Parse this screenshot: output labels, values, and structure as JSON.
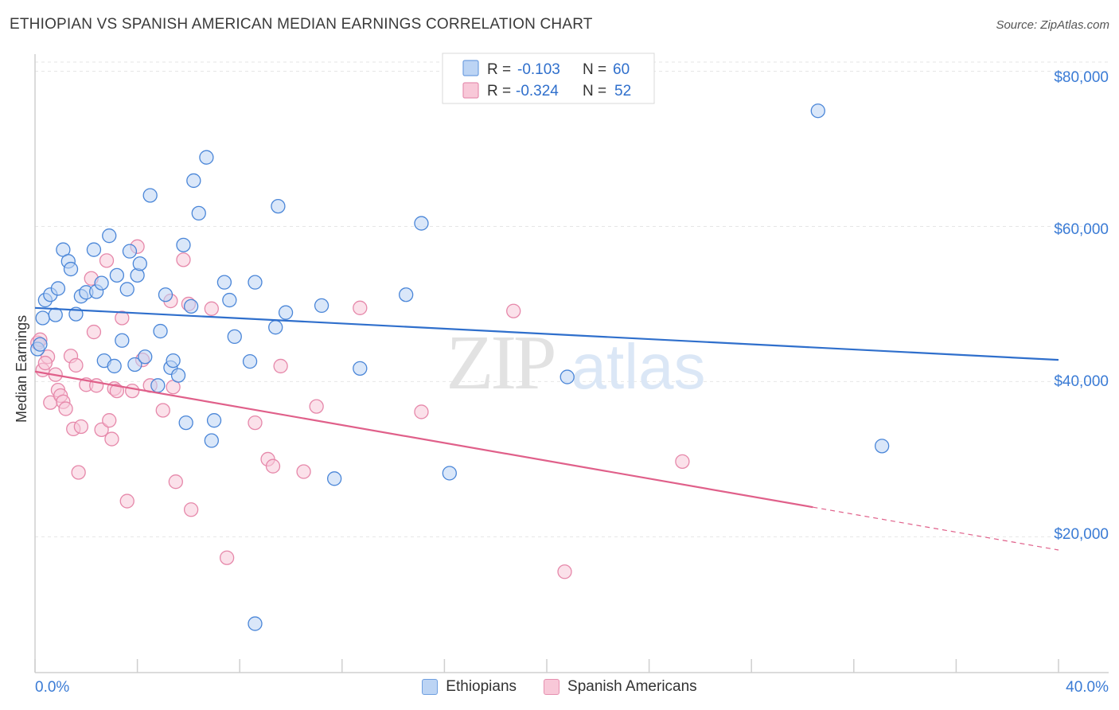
{
  "header": {
    "title": "ETHIOPIAN VS SPANISH AMERICAN MEDIAN EARNINGS CORRELATION CHART",
    "source": "Source: ZipAtlas.com"
  },
  "colors": {
    "blue": "#4a86d8",
    "blue_fill": "#bcd4f4",
    "blue_line": "#2f6fcc",
    "pink": "#e688aa",
    "pink_fill": "#f8c8d8",
    "pink_line": "#e0608a",
    "axis_label": "#3a7bd5"
  },
  "legend": {
    "r_label": "R =",
    "n_label": "N =",
    "items": [
      {
        "name": "Ethiopians",
        "r": "-0.103",
        "n": "60"
      },
      {
        "name": "Spanish Americans",
        "r": "-0.324",
        "n": "52"
      }
    ]
  },
  "watermark": {
    "zip": "ZIP",
    "atlas": "atlas"
  },
  "chart_data": {
    "type": "scatter",
    "title": "ETHIOPIAN VS SPANISH AMERICAN MEDIAN EARNINGS CORRELATION CHART",
    "xlabel": "",
    "ylabel": "Median Earnings",
    "xlim": [
      0,
      40
    ],
    "ylim": [
      2500,
      82000
    ],
    "x_tick_labels": [
      "0.0%",
      "40.0%"
    ],
    "y_ticks": [
      20000,
      40000,
      60000,
      80000
    ],
    "y_tick_labels": [
      "$20,000",
      "$40,000",
      "$60,000",
      "$80,000"
    ],
    "grid": true,
    "series": [
      {
        "name": "Ethiopians",
        "trend": {
          "x0": 0,
          "y0": 49500,
          "x1": 40,
          "y1": 42800,
          "solid_until": 40
        },
        "points": [
          [
            0.3,
            48200
          ],
          [
            0.4,
            50500
          ],
          [
            0.6,
            51200
          ],
          [
            0.8,
            48600
          ],
          [
            0.9,
            52000
          ],
          [
            1.1,
            57000
          ],
          [
            1.3,
            55500
          ],
          [
            1.4,
            54500
          ],
          [
            1.6,
            48700
          ],
          [
            1.8,
            51000
          ],
          [
            2.0,
            51500
          ],
          [
            2.3,
            57000
          ],
          [
            2.4,
            51600
          ],
          [
            2.6,
            52700
          ],
          [
            2.7,
            42700
          ],
          [
            2.9,
            58800
          ],
          [
            3.1,
            42000
          ],
          [
            3.2,
            53700
          ],
          [
            3.4,
            45300
          ],
          [
            3.6,
            51900
          ],
          [
            3.7,
            56800
          ],
          [
            3.9,
            42200
          ],
          [
            4.0,
            53700
          ],
          [
            4.1,
            55200
          ],
          [
            4.3,
            43200
          ],
          [
            4.5,
            64000
          ],
          [
            4.8,
            39500
          ],
          [
            4.9,
            46500
          ],
          [
            5.1,
            51200
          ],
          [
            5.3,
            41800
          ],
          [
            5.4,
            42700
          ],
          [
            5.6,
            40800
          ],
          [
            5.8,
            57600
          ],
          [
            5.9,
            34700
          ],
          [
            6.1,
            49700
          ],
          [
            6.2,
            65900
          ],
          [
            6.4,
            61700
          ],
          [
            6.7,
            68900
          ],
          [
            6.9,
            32400
          ],
          [
            7.0,
            35000
          ],
          [
            7.4,
            52800
          ],
          [
            7.6,
            50500
          ],
          [
            7.8,
            45800
          ],
          [
            8.4,
            42600
          ],
          [
            8.6,
            52800
          ],
          [
            8.6,
            8800
          ],
          [
            9.4,
            47000
          ],
          [
            9.5,
            62600
          ],
          [
            9.8,
            48900
          ],
          [
            11.2,
            49800
          ],
          [
            11.7,
            27500
          ],
          [
            12.7,
            41700
          ],
          [
            14.5,
            51200
          ],
          [
            15.1,
            60400
          ],
          [
            16.2,
            28200
          ],
          [
            20.8,
            40600
          ],
          [
            30.6,
            74900
          ],
          [
            33.1,
            31700
          ],
          [
            0.1,
            44200
          ],
          [
            0.2,
            44800
          ]
        ]
      },
      {
        "name": "Spanish Americans",
        "trend": {
          "x0": 0,
          "y0": 41300,
          "x1": 40,
          "y1": 18300,
          "solid_until": 30.4
        },
        "points": [
          [
            0.1,
            45000
          ],
          [
            0.3,
            41500
          ],
          [
            0.5,
            43200
          ],
          [
            0.6,
            37300
          ],
          [
            0.8,
            40900
          ],
          [
            0.9,
            38900
          ],
          [
            1.0,
            38200
          ],
          [
            1.1,
            37400
          ],
          [
            1.2,
            36500
          ],
          [
            1.4,
            43300
          ],
          [
            1.5,
            33900
          ],
          [
            1.6,
            42100
          ],
          [
            1.7,
            28300
          ],
          [
            1.8,
            34200
          ],
          [
            2.0,
            39600
          ],
          [
            2.2,
            53300
          ],
          [
            2.3,
            46400
          ],
          [
            2.4,
            39500
          ],
          [
            2.6,
            33800
          ],
          [
            2.8,
            55600
          ],
          [
            2.9,
            35000
          ],
          [
            3.0,
            32600
          ],
          [
            3.1,
            39100
          ],
          [
            3.2,
            38800
          ],
          [
            3.4,
            48200
          ],
          [
            3.6,
            24600
          ],
          [
            3.8,
            38800
          ],
          [
            4.0,
            57400
          ],
          [
            4.2,
            42800
          ],
          [
            4.5,
            39500
          ],
          [
            5.0,
            36300
          ],
          [
            5.3,
            50400
          ],
          [
            5.4,
            39300
          ],
          [
            5.5,
            27100
          ],
          [
            5.8,
            55700
          ],
          [
            6.0,
            50000
          ],
          [
            6.1,
            23500
          ],
          [
            6.9,
            49400
          ],
          [
            7.5,
            17300
          ],
          [
            8.6,
            34700
          ],
          [
            9.1,
            30000
          ],
          [
            9.3,
            29100
          ],
          [
            9.6,
            42000
          ],
          [
            10.5,
            28400
          ],
          [
            11.0,
            36800
          ],
          [
            12.7,
            49500
          ],
          [
            15.1,
            36100
          ],
          [
            18.7,
            49100
          ],
          [
            20.7,
            15500
          ],
          [
            25.3,
            29700
          ],
          [
            0.2,
            45400
          ],
          [
            0.4,
            42400
          ]
        ]
      }
    ]
  }
}
